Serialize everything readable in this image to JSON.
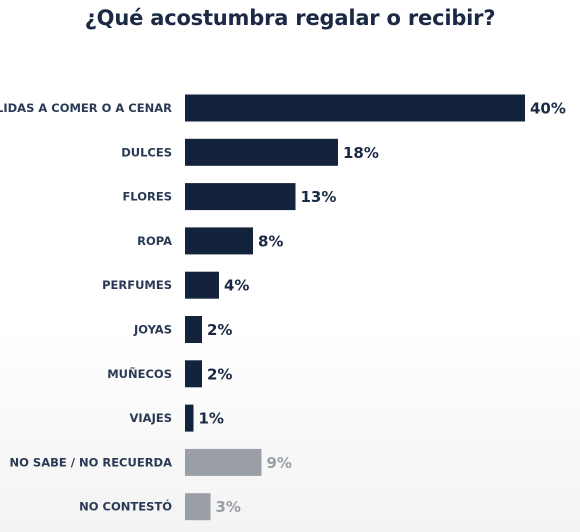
{
  "chart_data": {
    "type": "bar",
    "orientation": "horizontal",
    "title": "¿Qué acostumbra regalar o recibir?",
    "categories": [
      "SALIDAS A COMER O A CENAR",
      "DULCES",
      "FLORES",
      "ROPA",
      "PERFUMES",
      "JOYAS",
      "MUÑECOS",
      "VIAJES",
      "NO SABE / NO RECUERDA",
      "NO CONTESTÓ"
    ],
    "values": [
      40,
      18,
      13,
      8,
      4,
      2,
      2,
      1,
      9,
      3
    ],
    "value_labels": [
      "40%",
      "18%",
      "13%",
      "8%",
      "4%",
      "2%",
      "2%",
      "1%",
      "9%",
      "3%"
    ],
    "unit": "%",
    "bar_colors": [
      "#14233c",
      "#14233c",
      "#14233c",
      "#14233c",
      "#14233c",
      "#14233c",
      "#14233c",
      "#14233c",
      "#9a9fa6",
      "#9a9fa6"
    ],
    "label_colors": [
      "#1b2a44",
      "#1b2a44",
      "#1b2a44",
      "#1b2a44",
      "#1b2a44",
      "#1b2a44",
      "#1b2a44",
      "#1b2a44",
      "#9a9fa6",
      "#9a9fa6"
    ],
    "xlim": [
      0,
      40
    ],
    "grid": false,
    "legend": "none"
  }
}
